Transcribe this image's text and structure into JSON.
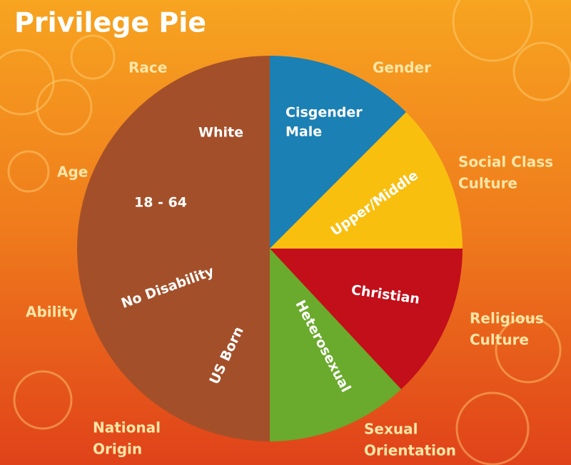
{
  "title": "Privilege Pie",
  "outer_labels": [
    {
      "lines": [
        "Race"
      ]
    },
    {
      "lines": [
        "Gender"
      ]
    },
    {
      "lines": [
        "Age"
      ]
    },
    {
      "lines": [
        "Social Class",
        "Culture"
      ]
    },
    {
      "lines": [
        "Ability"
      ]
    },
    {
      "lines": [
        "Religious",
        "Culture"
      ]
    },
    {
      "lines": [
        "National",
        "Origin"
      ]
    },
    {
      "lines": [
        "Sexual",
        "Orientation"
      ]
    }
  ],
  "inner_labels": [
    {
      "lines": [
        "White"
      ]
    },
    {
      "lines": [
        "18 - 64"
      ]
    },
    {
      "lines": [
        "No Disability"
      ]
    },
    {
      "lines": [
        "US Born"
      ]
    },
    {
      "lines": [
        "Cisgender",
        "Male"
      ]
    },
    {
      "lines": [
        "Upper/Middle"
      ]
    },
    {
      "lines": [
        "Christian"
      ]
    },
    {
      "lines": [
        "Heterosexual"
      ]
    }
  ]
}
